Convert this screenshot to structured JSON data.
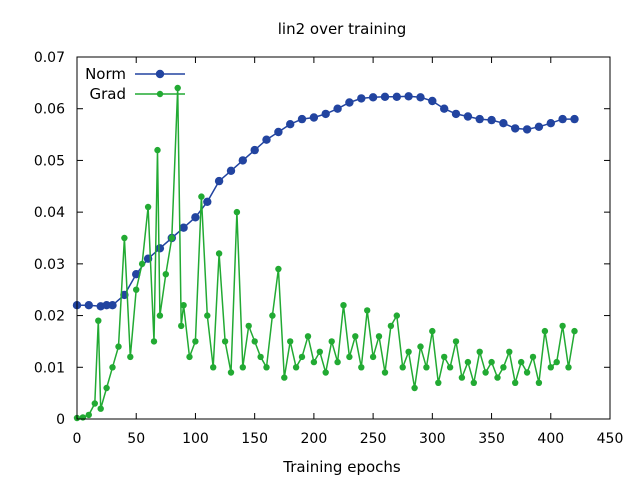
{
  "chart_data": {
    "type": "line",
    "title": "lin2 over training",
    "xlabel": "Training epochs",
    "ylabel": "",
    "xlim": [
      0,
      450
    ],
    "ylim": [
      0,
      0.07
    ],
    "x_ticks": [
      "0",
      "50",
      "100",
      "150",
      "200",
      "250",
      "300",
      "350",
      "400",
      "450"
    ],
    "y_ticks": [
      "0",
      "0.01",
      "0.02",
      "0.03",
      "0.04",
      "0.05",
      "0.06",
      "0.07"
    ],
    "grid": false,
    "legend_position": "top-left",
    "series": [
      {
        "name": "Norm",
        "color": "#2244a0",
        "x": [
          0,
          10,
          20,
          25,
          30,
          40,
          50,
          60,
          70,
          80,
          90,
          100,
          110,
          120,
          130,
          140,
          150,
          160,
          170,
          180,
          190,
          200,
          210,
          220,
          230,
          240,
          250,
          260,
          270,
          280,
          290,
          300,
          310,
          320,
          330,
          340,
          350,
          360,
          370,
          380,
          390,
          400,
          410,
          420
        ],
        "y": [
          0.022,
          0.022,
          0.0218,
          0.022,
          0.022,
          0.024,
          0.028,
          0.031,
          0.033,
          0.035,
          0.037,
          0.039,
          0.042,
          0.046,
          0.048,
          0.05,
          0.052,
          0.054,
          0.0555,
          0.057,
          0.058,
          0.0583,
          0.059,
          0.06,
          0.0612,
          0.062,
          0.0622,
          0.0623,
          0.0623,
          0.0624,
          0.0622,
          0.0615,
          0.06,
          0.059,
          0.0585,
          0.058,
          0.0578,
          0.0572,
          0.0562,
          0.056,
          0.0565,
          0.0572,
          0.058,
          0.058
        ]
      },
      {
        "name": "Grad",
        "color": "#22aa33",
        "x": [
          0,
          5,
          10,
          15,
          18,
          20,
          25,
          30,
          35,
          40,
          45,
          50,
          55,
          60,
          65,
          68,
          70,
          75,
          80,
          85,
          88,
          90,
          95,
          100,
          105,
          110,
          115,
          120,
          125,
          130,
          135,
          140,
          145,
          150,
          155,
          160,
          165,
          170,
          175,
          180,
          185,
          190,
          195,
          200,
          205,
          210,
          215,
          220,
          225,
          230,
          235,
          240,
          245,
          250,
          255,
          260,
          265,
          270,
          275,
          280,
          285,
          290,
          295,
          300,
          305,
          310,
          315,
          320,
          325,
          330,
          335,
          340,
          345,
          350,
          355,
          360,
          365,
          370,
          375,
          380,
          385,
          390,
          395,
          400,
          405,
          410,
          415,
          420
        ],
        "y": [
          0.0002,
          0.0003,
          0.0008,
          0.003,
          0.019,
          0.002,
          0.006,
          0.01,
          0.014,
          0.035,
          0.012,
          0.025,
          0.03,
          0.041,
          0.015,
          0.052,
          0.02,
          0.028,
          0.035,
          0.064,
          0.018,
          0.022,
          0.012,
          0.015,
          0.043,
          0.02,
          0.01,
          0.032,
          0.015,
          0.009,
          0.04,
          0.01,
          0.018,
          0.015,
          0.012,
          0.01,
          0.02,
          0.029,
          0.008,
          0.015,
          0.01,
          0.012,
          0.016,
          0.011,
          0.013,
          0.009,
          0.015,
          0.011,
          0.022,
          0.012,
          0.016,
          0.01,
          0.021,
          0.012,
          0.016,
          0.009,
          0.018,
          0.02,
          0.01,
          0.013,
          0.006,
          0.014,
          0.01,
          0.017,
          0.007,
          0.012,
          0.01,
          0.015,
          0.008,
          0.011,
          0.007,
          0.013,
          0.009,
          0.011,
          0.008,
          0.01,
          0.013,
          0.007,
          0.011,
          0.009,
          0.012,
          0.007,
          0.017,
          0.01,
          0.011,
          0.018,
          0.01,
          0.017
        ]
      }
    ]
  }
}
